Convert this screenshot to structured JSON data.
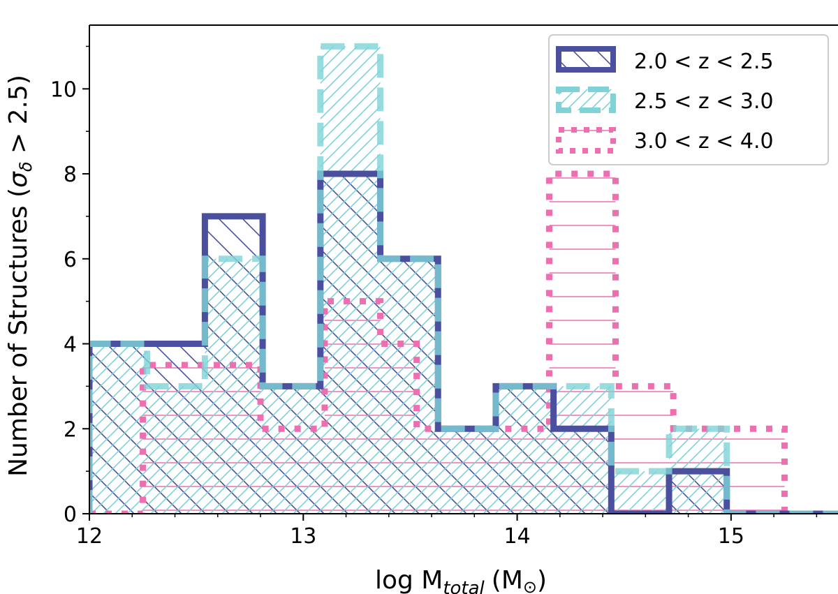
{
  "chart_data": {
    "type": "histogram",
    "xlabel": "log M",
    "xlabel_sub": "total",
    "xlabel_unit": "(M",
    "xlabel_sun": "⊙",
    "xlabel_close": ")",
    "ylabel_prefix": "Number of Structures (",
    "ylabel_sigma": "σ",
    "ylabel_sub": "δ",
    "ylabel_suffix": " > 2.5)",
    "xlim": [
      12.0,
      15.5
    ],
    "ylim": [
      0,
      11.5
    ],
    "xticks": [
      "12",
      "13",
      "14",
      "15"
    ],
    "yticks": [
      "0",
      "2",
      "4",
      "6",
      "8",
      "10"
    ],
    "series": [
      {
        "name": "2.0 < z < 2.5",
        "color": "#4a4f9e",
        "hatch": "backslash",
        "style": "solid",
        "bins": [
          12.0,
          12.54,
          12.81,
          13.08,
          13.36,
          13.63,
          13.9,
          14.17,
          14.44,
          14.71,
          14.98,
          15.5
        ],
        "counts": [
          4,
          7,
          3,
          8,
          6,
          2,
          3,
          2,
          0,
          1,
          0
        ]
      },
      {
        "name": "2.5 < z < 3.0",
        "color": "#7fd3d8",
        "hatch": "slash",
        "style": "dashed",
        "bins": [
          12.0,
          12.27,
          12.54,
          12.81,
          13.08,
          13.36,
          13.63,
          13.9,
          14.17,
          14.44,
          14.71,
          14.98,
          15.5
        ],
        "counts": [
          4,
          3,
          6,
          3,
          11,
          6,
          2,
          3,
          3,
          1,
          2,
          0
        ]
      },
      {
        "name": "3.0 < z < 4.0",
        "color": "#ee6fb0",
        "hatch": "horizontal",
        "style": "dotted",
        "bins": [
          12.0,
          12.25,
          12.8,
          13.1,
          13.36,
          13.53,
          14.15,
          14.46,
          14.73,
          15.25,
          15.5
        ],
        "counts": [
          0,
          3.5,
          2,
          5,
          4,
          2,
          8,
          3,
          2,
          0
        ]
      }
    ]
  }
}
